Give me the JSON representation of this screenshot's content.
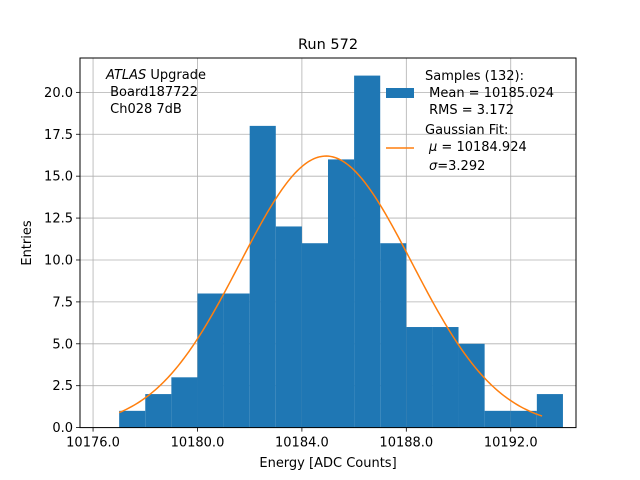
{
  "chart_data": {
    "type": "histogram",
    "title": "Run 572",
    "xlabel": "Energy [ADC Counts]",
    "ylabel": "Entries",
    "xlim": [
      10175.5,
      10194.5
    ],
    "ylim": [
      0,
      22.05
    ],
    "grid": true,
    "xticks": [
      10176,
      10180,
      10184,
      10188,
      10192
    ],
    "xtick_labels": [
      "10176.0",
      "10180.0",
      "10184.0",
      "10188.0",
      "10192.0"
    ],
    "yticks": [
      0,
      2.5,
      5,
      7.5,
      10,
      12.5,
      15,
      17.5,
      20
    ],
    "ytick_labels": [
      "0.0",
      "2.5",
      "5.0",
      "7.5",
      "10.0",
      "12.5",
      "15.0",
      "17.5",
      "20.0"
    ],
    "bins": [
      {
        "x0": 10177,
        "x1": 10178,
        "count": 1
      },
      {
        "x0": 10178,
        "x1": 10179,
        "count": 2
      },
      {
        "x0": 10179,
        "x1": 10180,
        "count": 3
      },
      {
        "x0": 10180,
        "x1": 10181,
        "count": 8
      },
      {
        "x0": 10181,
        "x1": 10182,
        "count": 8
      },
      {
        "x0": 10182,
        "x1": 10183,
        "count": 18
      },
      {
        "x0": 10183,
        "x1": 10184,
        "count": 12
      },
      {
        "x0": 10184,
        "x1": 10185,
        "count": 11
      },
      {
        "x0": 10185,
        "x1": 10186,
        "count": 16
      },
      {
        "x0": 10186,
        "x1": 10187,
        "count": 21
      },
      {
        "x0": 10187,
        "x1": 10188,
        "count": 11
      },
      {
        "x0": 10188,
        "x1": 10189,
        "count": 6
      },
      {
        "x0": 10189,
        "x1": 10190,
        "count": 6
      },
      {
        "x0": 10190,
        "x1": 10191,
        "count": 5
      },
      {
        "x0": 10191,
        "x1": 10192,
        "count": 1
      },
      {
        "x0": 10192,
        "x1": 10193,
        "count": 1
      },
      {
        "x0": 10193,
        "x1": 10194,
        "count": 2
      }
    ],
    "fit": {
      "type": "gaussian",
      "amplitude": 16.2,
      "mu": 10184.924,
      "sigma": 3.292,
      "x_range": [
        10177,
        10193.2
      ]
    },
    "colors": {
      "bars": "#1f77b4",
      "fit": "#ff7f0e",
      "grid": "#b0b0b0"
    },
    "annotation": {
      "line1_italic": "ATLAS",
      "line1_rest": " Upgrade",
      "line2": " Board187722",
      "line3": " Ch028 7dB"
    },
    "legend": {
      "position": "top-right",
      "samples": {
        "line1": "Samples (132):",
        "line2": " Mean = 10185.024",
        "line3": " RMS = 3.172"
      },
      "gaussian": {
        "line1": "Gaussian Fit:",
        "mu_text": " = 10184.924",
        "sigma_text": "=3.292"
      }
    }
  }
}
